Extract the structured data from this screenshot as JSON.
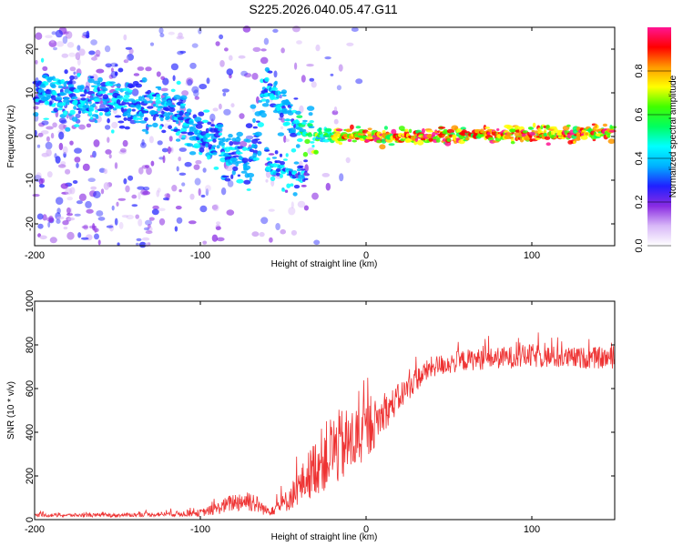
{
  "title": "S225.2026.040.05.47.G11",
  "chart_data": [
    {
      "type": "heatmap",
      "xlabel": "Height of straight line (km)",
      "ylabel": "Frequency (Hz)",
      "xlim": [
        -200,
        150
      ],
      "ylim": [
        -25,
        25
      ],
      "x_ticks": [
        -200,
        -100,
        0,
        100
      ],
      "y_ticks": [
        -20,
        -10,
        0,
        10,
        20
      ],
      "colorbar": {
        "label": "Normalized spectral amplitude",
        "range": [
          0,
          1
        ],
        "ticks": [
          "0.0",
          "0.2",
          "0.4",
          "0.6",
          "0.8"
        ],
        "colors": [
          "#ffffff",
          "#d8b8f8",
          "#8a2be2",
          "#2020ff",
          "#00b0ff",
          "#00ffff",
          "#00ff60",
          "#40ff00",
          "#ffff00",
          "#ff9900",
          "#ff0000",
          "#ff1493"
        ]
      },
      "ridge": {
        "x": [
          -200,
          -180,
          -160,
          -140,
          -120,
          -110,
          -100,
          -90,
          -80,
          -70,
          -60,
          -50,
          -40,
          -30,
          -20,
          -10,
          0,
          20,
          40,
          60,
          80,
          100,
          120,
          150
        ],
        "y": [
          10,
          9,
          8,
          7,
          6,
          4,
          1,
          -2,
          -4,
          -6,
          12,
          6,
          2,
          0.5,
          0,
          0.5,
          0,
          0,
          0,
          0.5,
          0.5,
          0.5,
          0.5,
          1
        ]
      },
      "secondary_branch": {
        "x": [
          -60,
          -55,
          -50,
          -45,
          -40,
          -35
        ],
        "y": [
          -5,
          -7,
          -8,
          -9,
          -9,
          -10
        ]
      }
    },
    {
      "type": "line",
      "xlabel": "Height of straight line (km)",
      "ylabel": "SNR (10 * v/v)",
      "xlim": [
        -200,
        150
      ],
      "ylim": [
        0,
        1000
      ],
      "x_ticks": [
        -200,
        -100,
        0,
        100
      ],
      "y_ticks": [
        0,
        200,
        400,
        600,
        800,
        1000
      ],
      "color": "#ee3333",
      "envelope": {
        "x": [
          -200,
          -150,
          -120,
          -100,
          -90,
          -80,
          -70,
          -60,
          -50,
          -40,
          -30,
          -20,
          -10,
          0,
          10,
          20,
          30,
          40,
          60,
          80,
          100,
          120,
          150
        ],
        "mean": [
          20,
          20,
          25,
          30,
          50,
          80,
          90,
          40,
          70,
          150,
          250,
          320,
          350,
          400,
          480,
          560,
          640,
          700,
          730,
          740,
          750,
          740,
          740
        ],
        "spread": [
          15,
          15,
          20,
          30,
          50,
          80,
          100,
          40,
          80,
          150,
          250,
          320,
          300,
          250,
          150,
          120,
          100,
          90,
          90,
          90,
          100,
          90,
          90
        ]
      }
    }
  ]
}
